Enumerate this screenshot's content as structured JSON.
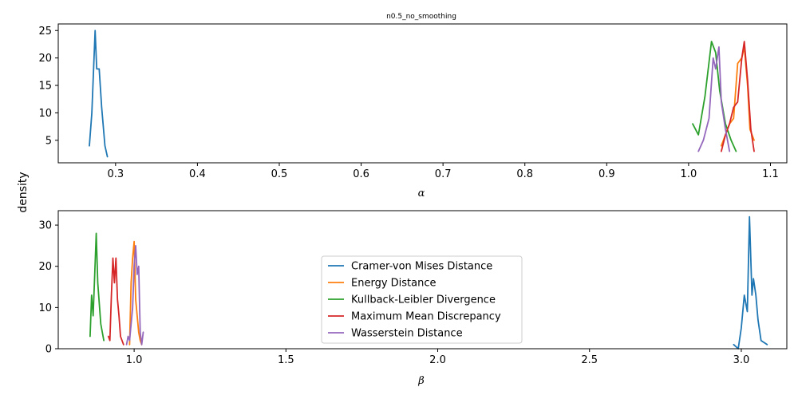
{
  "chart_data": {
    "type": "line",
    "title": "n0.5_no_smoothing",
    "ylabel": "density",
    "colors": {
      "Cramer-von Mises Distance": "#1f77b4",
      "Energy Distance": "#ff7f0e",
      "Kullback-Leibler Divergence": "#2ca02c",
      "Maximum Mean Discrepancy": "#d62728",
      "Wasserstein Distance": "#9467bd"
    },
    "legend": {
      "placement": "center",
      "entries": [
        "Cramer-von Mises Distance",
        "Energy Distance",
        "Kullback-Leibler Divergence",
        "Maximum Mean Discrepancy",
        "Wasserstein Distance"
      ]
    },
    "panels": [
      {
        "xlabel": "α",
        "xlim": [
          0.23,
          1.12
        ],
        "ylim": [
          0.9,
          26.2
        ],
        "xticks": [
          "0.3",
          "0.4",
          "0.5",
          "0.6",
          "0.7",
          "0.8",
          "0.9",
          "1.0",
          "1.1"
        ],
        "xtick_values": [
          0.3,
          0.4,
          0.5,
          0.6,
          0.7,
          0.8,
          0.9,
          1.0,
          1.1
        ],
        "yticks": [
          "5",
          "10",
          "15",
          "20",
          "25"
        ],
        "ytick_values": [
          5,
          10,
          15,
          20,
          25
        ],
        "series": [
          {
            "name": "Cramer-von Mises Distance",
            "x": [
              0.268,
              0.271,
              0.275,
              0.277,
              0.28,
              0.283,
              0.287,
              0.29
            ],
            "y": [
              4,
              10,
              25,
              18,
              18,
              11,
              4,
              2
            ]
          },
          {
            "name": "Energy Distance",
            "x": [
              1.04,
              1.045,
              1.05,
              1.055,
              1.06,
              1.065,
              1.068,
              1.072,
              1.075,
              1.08
            ],
            "y": [
              4,
              6,
              8,
              9,
              19,
              20,
              22,
              15,
              7,
              5
            ]
          },
          {
            "name": "Kullback-Leibler Divergence",
            "x": [
              1.005,
              1.012,
              1.02,
              1.028,
              1.033,
              1.038,
              1.045,
              1.052,
              1.058
            ],
            "y": [
              8,
              6,
              13,
              23,
              21,
              14,
              8,
              5,
              3
            ]
          },
          {
            "name": "Maximum Mean Discrepancy",
            "x": [
              1.04,
              1.045,
              1.05,
              1.055,
              1.06,
              1.065,
              1.068,
              1.072,
              1.076,
              1.08
            ],
            "y": [
              3,
              6,
              8,
              11,
              12,
              20,
              23,
              16,
              7,
              3
            ]
          },
          {
            "name": "Wasserstein Distance",
            "x": [
              1.012,
              1.018,
              1.025,
              1.03,
              1.033,
              1.037,
              1.04,
              1.045,
              1.05
            ],
            "y": [
              3,
              5,
              9,
              20,
              18,
              22,
              12,
              7,
              3
            ]
          }
        ]
      },
      {
        "xlabel": "β",
        "xlim": [
          0.75,
          3.15
        ],
        "ylim": [
          0,
          33.5
        ],
        "xticks": [
          "1.0",
          "1.5",
          "2.0",
          "2.5",
          "3.0"
        ],
        "xtick_values": [
          1.0,
          1.5,
          2.0,
          2.5,
          3.0
        ],
        "yticks": [
          "0",
          "10",
          "20",
          "30"
        ],
        "ytick_values": [
          0,
          10,
          20,
          30
        ],
        "series": [
          {
            "name": "Cramer-von Mises Distance",
            "x": [
              2.975,
              2.99,
              3.0,
              3.01,
              3.02,
              3.027,
              3.035,
              3.04,
              3.048,
              3.055,
              3.065,
              3.085
            ],
            "y": [
              1,
              0,
              5,
              13,
              9,
              32,
              13,
              17,
              13,
              7,
              2,
              1
            ]
          },
          {
            "name": "Energy Distance",
            "x": [
              0.985,
              0.99,
              0.995,
              1.0,
              1.005,
              1.01,
              1.015,
              1.02,
              1.025
            ],
            "y": [
              1,
              16,
              22,
              26,
              12,
              8,
              4,
              2,
              1
            ]
          },
          {
            "name": "Kullback-Leibler Divergence",
            "x": [
              0.855,
              0.86,
              0.865,
              0.87,
              0.875,
              0.88,
              0.885,
              0.89,
              0.9
            ],
            "y": [
              3,
              13,
              8,
              18,
              28,
              16,
              11,
              6,
              2
            ]
          },
          {
            "name": "Maximum Mean Discrepancy",
            "x": [
              0.915,
              0.92,
              0.925,
              0.93,
              0.935,
              0.94,
              0.945,
              0.95,
              0.955,
              0.965
            ],
            "y": [
              3,
              2,
              13,
              22,
              16,
              22,
              12,
              8,
              3,
              1
            ]
          },
          {
            "name": "Wasserstein Distance",
            "x": [
              0.975,
              0.98,
              0.985,
              0.99,
              0.995,
              1.0,
              1.005,
              1.01,
              1.015,
              1.02,
              1.025,
              1.03
            ],
            "y": [
              1,
              3,
              2,
              6,
              10,
              20,
              25,
              18,
              20,
              4,
              1,
              4
            ]
          }
        ]
      }
    ]
  }
}
